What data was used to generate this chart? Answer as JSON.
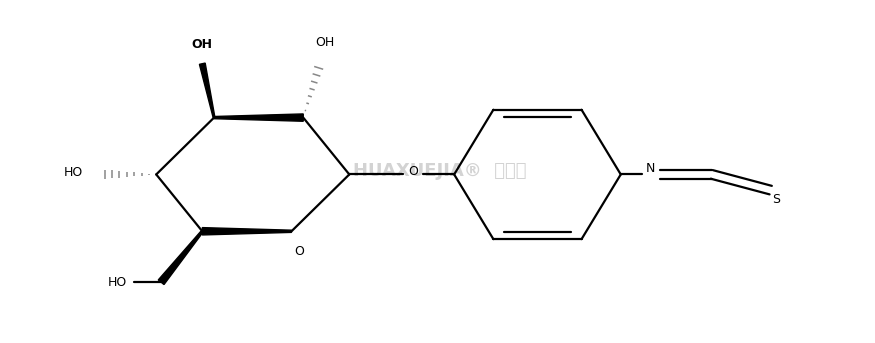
{
  "bg_color": "#ffffff",
  "line_color": "#000000",
  "gray_color": "#888888",
  "figsize": [
    8.75,
    3.43
  ],
  "dpi": 100,
  "xlim": [
    0.0,
    8.5
  ],
  "ylim": [
    0.0,
    3.5
  ]
}
